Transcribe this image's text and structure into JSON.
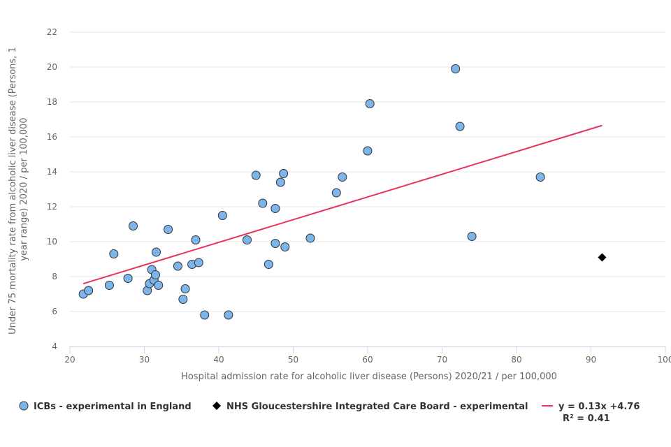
{
  "chart_data": {
    "type": "scatter",
    "xlabel": "Hospital admission rate for alcoholic liver disease (Persons) 2020/21  / per 100,000",
    "ylabel_lines": [
      "Under 75 mortality rate from alcoholic liver disease (Persons, 1",
      "year range) 2020  / per 100,000"
    ],
    "xlim": [
      20,
      100
    ],
    "ylim": [
      4,
      22
    ],
    "x_ticks": [
      20,
      30,
      40,
      50,
      60,
      70,
      80,
      90,
      100
    ],
    "y_ticks": [
      4,
      6,
      8,
      10,
      12,
      14,
      16,
      18,
      20,
      22
    ],
    "grid": "horizontal",
    "legend_position": "bottom",
    "series": [
      {
        "name": "ICBs - experimental in England",
        "marker": "circle",
        "color": "#7cb5ec",
        "points": [
          [
            21.8,
            7.0
          ],
          [
            22.5,
            7.2
          ],
          [
            25.3,
            7.5
          ],
          [
            25.9,
            9.3
          ],
          [
            27.8,
            7.9
          ],
          [
            28.5,
            10.9
          ],
          [
            30.4,
            7.2
          ],
          [
            30.7,
            7.6
          ],
          [
            31.0,
            8.4
          ],
          [
            31.3,
            7.8
          ],
          [
            31.5,
            8.1
          ],
          [
            31.6,
            9.4
          ],
          [
            31.9,
            7.5
          ],
          [
            33.2,
            10.7
          ],
          [
            34.5,
            8.6
          ],
          [
            35.2,
            6.7
          ],
          [
            35.5,
            7.3
          ],
          [
            36.4,
            8.7
          ],
          [
            36.9,
            10.1
          ],
          [
            37.3,
            8.8
          ],
          [
            38.1,
            5.8
          ],
          [
            40.5,
            11.5
          ],
          [
            41.3,
            5.8
          ],
          [
            43.8,
            10.1
          ],
          [
            45.0,
            13.8
          ],
          [
            45.9,
            12.2
          ],
          [
            46.7,
            8.7
          ],
          [
            47.6,
            11.9
          ],
          [
            47.6,
            9.9
          ],
          [
            48.3,
            13.4
          ],
          [
            48.7,
            13.9
          ],
          [
            48.9,
            9.7
          ],
          [
            52.3,
            10.2
          ],
          [
            55.8,
            12.8
          ],
          [
            56.6,
            13.7
          ],
          [
            60.0,
            15.2
          ],
          [
            60.3,
            17.9
          ],
          [
            71.8,
            19.9
          ],
          [
            72.4,
            16.6
          ],
          [
            74.0,
            10.3
          ],
          [
            83.2,
            13.7
          ]
        ]
      },
      {
        "name": "NHS Gloucestershire Integrated Care Board - experimental",
        "marker": "diamond",
        "color": "#000000",
        "points": [
          [
            91.5,
            9.1
          ]
        ]
      }
    ],
    "trendline": {
      "label": "y = 0.13x +4.76",
      "r2_label": "R² = 0.41",
      "color": "#e8315b",
      "slope": 0.13,
      "intercept": 4.76,
      "x_range": [
        21.8,
        91.5
      ]
    }
  }
}
